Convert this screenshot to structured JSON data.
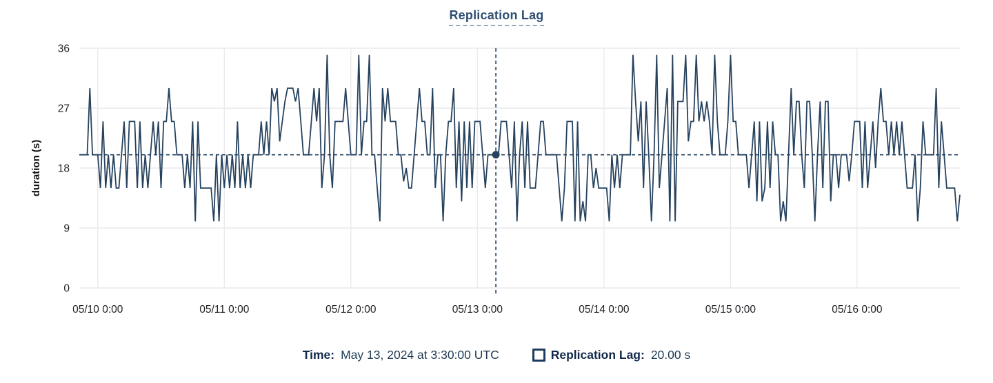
{
  "title": "Replication Lag",
  "colors": {
    "line": "#26425e",
    "title_text": "#2e4f71",
    "title_underline": "#94a9bf",
    "grid": "#eaeaee",
    "tick_text": "#202225",
    "axis_label_text": "#111111",
    "crosshair": "#26425f",
    "marker": "#26425e",
    "footer_label": "#12294a",
    "footer_value": "#1e3a55"
  },
  "y_axis": {
    "label": "duration (s)",
    "tick_labels": [
      "0",
      "9",
      "18",
      "27",
      "36"
    ],
    "tick_values": [
      0,
      9,
      18,
      27,
      36
    ]
  },
  "x_axis": {
    "tick_labels": [
      "05/10 0:00",
      "05/11 0:00",
      "05/12 0:00",
      "05/13 0:00",
      "05/14 0:00",
      "05/15 0:00",
      "05/16 0:00"
    ],
    "tick_hours_from_start": [
      3.5,
      27.5,
      51.5,
      75.5,
      99.5,
      123.5,
      147.5
    ]
  },
  "crosshair": {
    "hours_from_start": 79,
    "value": 20,
    "time_label": "May 13, 2024 at 3:30:00 UTC"
  },
  "footer": {
    "time_label": "Time:",
    "time_value": "May 13, 2024 at 3:30:00 UTC",
    "series_label": "Replication Lag:",
    "series_value": "20.00 s"
  },
  "chart_data": {
    "type": "line",
    "title": "Replication Lag",
    "xlabel": "",
    "ylabel": "duration (s)",
    "ylim": [
      0,
      36
    ],
    "grid": true,
    "legend_position": "bottom",
    "x_start": "2024-05-09T20:30:00Z",
    "x_interval_minutes": 30,
    "x_tick_labels": [
      "05/10 0:00",
      "05/11 0:00",
      "05/12 0:00",
      "05/13 0:00",
      "05/14 0:00",
      "05/15 0:00",
      "05/16 0:00"
    ],
    "selected_point": {
      "time": "2024-05-13T03:30:00Z",
      "value": 20.0
    },
    "series": [
      {
        "name": "Replication Lag",
        "unit": "s",
        "values": [
          20,
          20,
          20,
          20,
          30,
          20,
          20,
          20,
          15,
          25,
          15,
          20,
          15,
          20,
          15,
          15,
          20,
          25,
          15,
          25,
          25,
          25,
          15,
          25,
          15,
          20,
          15,
          20,
          25,
          20,
          25,
          15,
          25,
          25,
          30,
          25,
          25,
          20,
          20,
          20,
          15,
          20,
          15,
          25,
          10,
          25,
          15,
          15,
          15,
          15,
          15,
          10,
          20,
          10,
          20,
          15,
          20,
          15,
          20,
          15,
          25,
          15,
          20,
          15,
          20,
          15,
          20,
          20,
          20,
          25,
          20,
          25,
          20,
          30,
          28,
          30,
          22,
          25,
          28,
          30,
          30,
          30,
          28,
          30,
          25,
          20,
          20,
          20,
          25,
          30,
          25,
          30,
          15,
          20,
          35,
          20,
          15,
          25,
          25,
          25,
          25,
          30,
          25,
          20,
          20,
          20,
          35,
          20,
          25,
          25,
          35,
          20,
          20,
          15,
          10,
          30,
          25,
          30,
          25,
          25,
          25,
          20,
          20,
          16,
          18,
          15,
          15,
          20,
          25,
          30,
          25,
          25,
          20,
          20,
          30,
          15,
          20,
          20,
          10,
          20,
          25,
          25,
          30,
          15,
          25,
          13,
          25,
          15,
          25,
          15,
          25,
          25,
          25,
          20,
          15,
          20,
          20,
          20,
          20,
          20,
          25,
          25,
          25,
          20,
          15,
          25,
          10,
          20,
          25,
          15,
          25,
          15,
          15,
          15,
          20,
          25,
          25,
          20,
          20,
          20,
          20,
          20,
          15,
          10,
          15,
          25,
          25,
          25,
          10,
          25,
          10,
          13,
          10,
          20,
          20,
          15,
          18,
          15,
          15,
          15,
          15,
          10,
          20,
          15,
          20,
          15,
          20,
          20,
          20,
          20,
          35,
          28,
          22,
          28,
          15,
          28,
          20,
          10,
          20,
          35,
          15,
          20,
          25,
          30,
          10,
          35,
          10,
          28,
          28,
          28,
          35,
          22,
          25,
          25,
          35,
          25,
          28,
          25,
          28,
          25,
          20,
          35,
          25,
          20,
          20,
          20,
          25,
          35,
          25,
          25,
          20,
          20,
          20,
          20,
          15,
          20,
          25,
          13,
          25,
          13,
          15,
          25,
          15,
          25,
          20,
          20,
          10,
          13,
          10,
          20,
          30,
          20,
          28,
          28,
          20,
          15,
          28,
          28,
          20,
          10,
          20,
          28,
          15,
          28,
          28,
          13,
          20,
          20,
          15,
          20,
          20,
          20,
          16,
          20,
          25,
          25,
          25,
          15,
          25,
          15,
          20,
          25,
          18,
          25,
          30,
          25,
          25,
          20,
          25,
          20,
          25,
          20,
          25,
          20,
          15,
          15,
          15,
          20,
          10,
          15,
          25,
          20,
          20,
          20,
          20,
          30,
          15,
          25,
          20,
          15,
          15,
          15,
          15,
          10,
          14
        ]
      }
    ]
  }
}
